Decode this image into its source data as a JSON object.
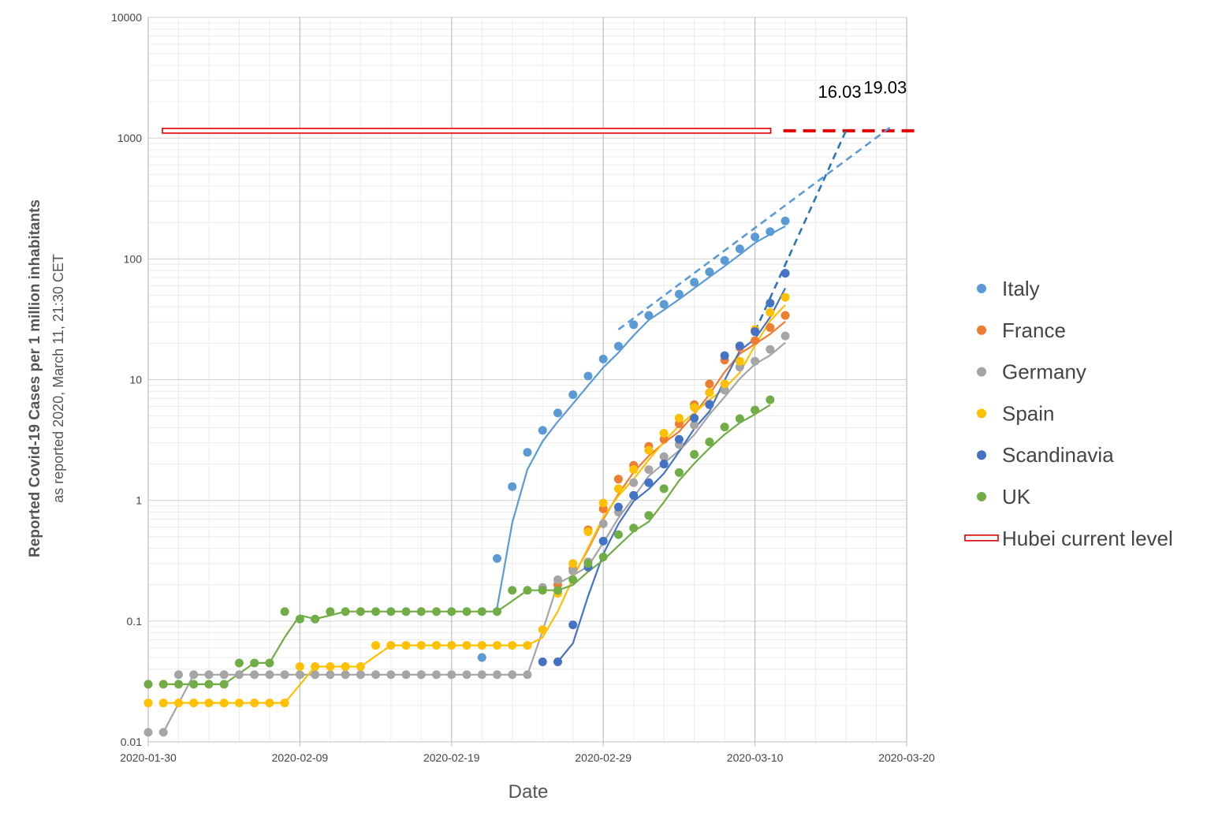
{
  "chart_data": {
    "type": "scatter",
    "title": "",
    "xlabel": "Date",
    "ylabel": "Reported Covid-19 Cases per 1 million inhabitants",
    "ylabel_sub": "as reported 2020, March 11, 21:30 CET",
    "y_scale": "log",
    "ylim": [
      0.01,
      10000
    ],
    "xlim": [
      "2020-01-30",
      "2020-03-20"
    ],
    "y_ticks": [
      "0.01",
      "0.1",
      "1",
      "10",
      "100",
      "1000",
      "10000"
    ],
    "x_ticks": [
      "2020-01-30",
      "2020-02-09",
      "2020-02-19",
      "2020-02-29",
      "2020-03-10",
      "2020-03-20"
    ],
    "grid": true,
    "legend": "right",
    "series": [
      {
        "name": "Italy",
        "color": "#5b9bd5",
        "points": [
          [
            "2020-02-21",
            0.05
          ],
          [
            "2020-02-22",
            0.33
          ],
          [
            "2020-02-23",
            1.3
          ],
          [
            "2020-02-24",
            2.5
          ],
          [
            "2020-02-25",
            3.8
          ],
          [
            "2020-02-26",
            5.3
          ],
          [
            "2020-02-27",
            7.5
          ],
          [
            "2020-02-28",
            10.7
          ],
          [
            "2020-02-29",
            14.8
          ],
          [
            "2020-03-01",
            18.9
          ],
          [
            "2020-03-02",
            28.5
          ],
          [
            "2020-03-03",
            34
          ],
          [
            "2020-03-04",
            42
          ],
          [
            "2020-03-05",
            51
          ],
          [
            "2020-03-06",
            64
          ],
          [
            "2020-03-07",
            78
          ],
          [
            "2020-03-08",
            97
          ],
          [
            "2020-03-09",
            121
          ],
          [
            "2020-03-10",
            152
          ],
          [
            "2020-03-11",
            168
          ],
          [
            "2020-03-12",
            206
          ]
        ]
      },
      {
        "name": "France",
        "color": "#ed7d31",
        "points": [
          [
            "2020-02-26",
            0.2
          ],
          [
            "2020-02-27",
            0.27
          ],
          [
            "2020-02-28",
            0.57
          ],
          [
            "2020-02-29",
            0.85
          ],
          [
            "2020-03-01",
            1.5
          ],
          [
            "2020-03-02",
            1.95
          ],
          [
            "2020-03-03",
            2.8
          ],
          [
            "2020-03-04",
            3.2
          ],
          [
            "2020-03-05",
            4.3
          ],
          [
            "2020-03-06",
            6.2
          ],
          [
            "2020-03-07",
            9.2
          ],
          [
            "2020-03-08",
            14.5
          ],
          [
            "2020-03-09",
            18.5
          ],
          [
            "2020-03-10",
            21
          ],
          [
            "2020-03-11",
            27
          ],
          [
            "2020-03-12",
            34
          ]
        ]
      },
      {
        "name": "Germany",
        "color": "#a5a5a5",
        "points": [
          [
            "2020-01-30",
            0.012
          ],
          [
            "2020-01-31",
            0.012
          ],
          [
            "2020-02-01",
            0.036
          ],
          [
            "2020-02-02",
            0.036
          ],
          [
            "2020-02-03",
            0.036
          ],
          [
            "2020-02-04",
            0.036
          ],
          [
            "2020-02-05",
            0.036
          ],
          [
            "2020-02-06",
            0.036
          ],
          [
            "2020-02-07",
            0.036
          ],
          [
            "2020-02-08",
            0.036
          ],
          [
            "2020-02-09",
            0.036
          ],
          [
            "2020-02-10",
            0.036
          ],
          [
            "2020-02-11",
            0.036
          ],
          [
            "2020-02-12",
            0.036
          ],
          [
            "2020-02-13",
            0.036
          ],
          [
            "2020-02-14",
            0.036
          ],
          [
            "2020-02-15",
            0.036
          ],
          [
            "2020-02-16",
            0.036
          ],
          [
            "2020-02-17",
            0.036
          ],
          [
            "2020-02-18",
            0.036
          ],
          [
            "2020-02-19",
            0.036
          ],
          [
            "2020-02-20",
            0.036
          ],
          [
            "2020-02-21",
            0.036
          ],
          [
            "2020-02-22",
            0.036
          ],
          [
            "2020-02-23",
            0.036
          ],
          [
            "2020-02-24",
            0.036
          ],
          [
            "2020-02-25",
            0.19
          ],
          [
            "2020-02-26",
            0.22
          ],
          [
            "2020-02-27",
            0.26
          ],
          [
            "2020-02-28",
            0.31
          ],
          [
            "2020-02-29",
            0.64
          ],
          [
            "2020-03-01",
            0.8
          ],
          [
            "2020-03-02",
            1.4
          ],
          [
            "2020-03-03",
            1.8
          ],
          [
            "2020-03-04",
            2.3
          ],
          [
            "2020-03-05",
            2.9
          ],
          [
            "2020-03-06",
            4.2
          ],
          [
            "2020-03-07",
            6.3
          ],
          [
            "2020-03-08",
            8.2
          ],
          [
            "2020-03-09",
            12.7
          ],
          [
            "2020-03-10",
            14.2
          ],
          [
            "2020-03-11",
            17.8
          ],
          [
            "2020-03-12",
            23
          ]
        ]
      },
      {
        "name": "Spain",
        "color": "#ffc000",
        "points": [
          [
            "2020-01-30",
            0.021
          ],
          [
            "2020-01-31",
            0.021
          ],
          [
            "2020-02-01",
            0.021
          ],
          [
            "2020-02-02",
            0.021
          ],
          [
            "2020-02-03",
            0.021
          ],
          [
            "2020-02-04",
            0.021
          ],
          [
            "2020-02-05",
            0.021
          ],
          [
            "2020-02-06",
            0.021
          ],
          [
            "2020-02-07",
            0.021
          ],
          [
            "2020-02-08",
            0.021
          ],
          [
            "2020-02-09",
            0.042
          ],
          [
            "2020-02-10",
            0.042
          ],
          [
            "2020-02-11",
            0.042
          ],
          [
            "2020-02-12",
            0.042
          ],
          [
            "2020-02-13",
            0.042
          ],
          [
            "2020-02-14",
            0.063
          ],
          [
            "2020-02-15",
            0.063
          ],
          [
            "2020-02-16",
            0.063
          ],
          [
            "2020-02-17",
            0.063
          ],
          [
            "2020-02-18",
            0.063
          ],
          [
            "2020-02-19",
            0.063
          ],
          [
            "2020-02-20",
            0.063
          ],
          [
            "2020-02-21",
            0.063
          ],
          [
            "2020-02-22",
            0.063
          ],
          [
            "2020-02-23",
            0.063
          ],
          [
            "2020-02-24",
            0.063
          ],
          [
            "2020-02-25",
            0.085
          ],
          [
            "2020-02-26",
            0.17
          ],
          [
            "2020-02-27",
            0.3
          ],
          [
            "2020-02-28",
            0.55
          ],
          [
            "2020-02-29",
            0.95
          ],
          [
            "2020-03-01",
            1.25
          ],
          [
            "2020-03-02",
            1.8
          ],
          [
            "2020-03-03",
            2.6
          ],
          [
            "2020-03-04",
            3.6
          ],
          [
            "2020-03-05",
            4.8
          ],
          [
            "2020-03-06",
            5.9
          ],
          [
            "2020-03-07",
            7.8
          ],
          [
            "2020-03-08",
            9.2
          ],
          [
            "2020-03-09",
            14.2
          ],
          [
            "2020-03-10",
            26
          ],
          [
            "2020-03-11",
            36
          ],
          [
            "2020-03-12",
            48
          ]
        ]
      },
      {
        "name": "Scandinavia",
        "color": "#4472c4",
        "points": [
          [
            "2020-02-25",
            0.046
          ],
          [
            "2020-02-26",
            0.046
          ],
          [
            "2020-02-27",
            0.093
          ],
          [
            "2020-02-28",
            0.28
          ],
          [
            "2020-02-29",
            0.46
          ],
          [
            "2020-03-01",
            0.88
          ],
          [
            "2020-03-02",
            1.1
          ],
          [
            "2020-03-03",
            1.4
          ],
          [
            "2020-03-04",
            2.0
          ],
          [
            "2020-03-05",
            3.2
          ],
          [
            "2020-03-06",
            4.8
          ],
          [
            "2020-03-07",
            6.2
          ],
          [
            "2020-03-08",
            15.8
          ],
          [
            "2020-03-09",
            19
          ],
          [
            "2020-03-10",
            25
          ],
          [
            "2020-03-11",
            43
          ],
          [
            "2020-03-12",
            76
          ]
        ]
      },
      {
        "name": "UK",
        "color": "#70ad47",
        "points": [
          [
            "2020-01-30",
            0.03
          ],
          [
            "2020-01-31",
            0.03
          ],
          [
            "2020-02-01",
            0.03
          ],
          [
            "2020-02-02",
            0.03
          ],
          [
            "2020-02-03",
            0.03
          ],
          [
            "2020-02-04",
            0.03
          ],
          [
            "2020-02-05",
            0.045
          ],
          [
            "2020-02-06",
            0.045
          ],
          [
            "2020-02-07",
            0.045
          ],
          [
            "2020-02-08",
            0.12
          ],
          [
            "2020-02-09",
            0.104
          ],
          [
            "2020-02-10",
            0.104
          ],
          [
            "2020-02-11",
            0.12
          ],
          [
            "2020-02-12",
            0.12
          ],
          [
            "2020-02-13",
            0.12
          ],
          [
            "2020-02-14",
            0.12
          ],
          [
            "2020-02-15",
            0.12
          ],
          [
            "2020-02-16",
            0.12
          ],
          [
            "2020-02-17",
            0.12
          ],
          [
            "2020-02-18",
            0.12
          ],
          [
            "2020-02-19",
            0.12
          ],
          [
            "2020-02-20",
            0.12
          ],
          [
            "2020-02-21",
            0.12
          ],
          [
            "2020-02-22",
            0.12
          ],
          [
            "2020-02-23",
            0.18
          ],
          [
            "2020-02-24",
            0.18
          ],
          [
            "2020-02-25",
            0.18
          ],
          [
            "2020-02-26",
            0.18
          ],
          [
            "2020-02-27",
            0.22
          ],
          [
            "2020-02-28",
            0.3
          ],
          [
            "2020-02-29",
            0.34
          ],
          [
            "2020-03-01",
            0.52
          ],
          [
            "2020-03-02",
            0.59
          ],
          [
            "2020-03-03",
            0.75
          ],
          [
            "2020-03-04",
            1.25
          ],
          [
            "2020-03-05",
            1.7
          ],
          [
            "2020-03-06",
            2.4
          ],
          [
            "2020-03-07",
            3.05
          ],
          [
            "2020-03-08",
            4.05
          ],
          [
            "2020-03-09",
            4.75
          ],
          [
            "2020-03-10",
            5.6
          ],
          [
            "2020-03-11",
            6.8
          ]
        ]
      },
      {
        "name": "Hubei current level",
        "color": "#e00000",
        "type": "reference-line",
        "value": 1150,
        "x_range": [
          "2020-01-30",
          "2020-03-10"
        ],
        "extension_to": "2020-03-20"
      }
    ],
    "trendlines": [
      {
        "series": "Italy",
        "color": "#5b9bd5",
        "style": "dashed",
        "points": [
          [
            "2020-03-01",
            26
          ],
          [
            "2020-03-19",
            1250
          ]
        ]
      },
      {
        "series": "Scandinavia",
        "color": "#2e75b6",
        "style": "dashed",
        "points": [
          [
            "2020-03-10",
            25
          ],
          [
            "2020-03-16",
            1150
          ]
        ]
      }
    ],
    "annotations": [
      {
        "text": "16.03",
        "x": "2020-03-16",
        "y": 1150
      },
      {
        "text": "19.03",
        "x": "2020-03-19",
        "y": 1250
      }
    ]
  }
}
